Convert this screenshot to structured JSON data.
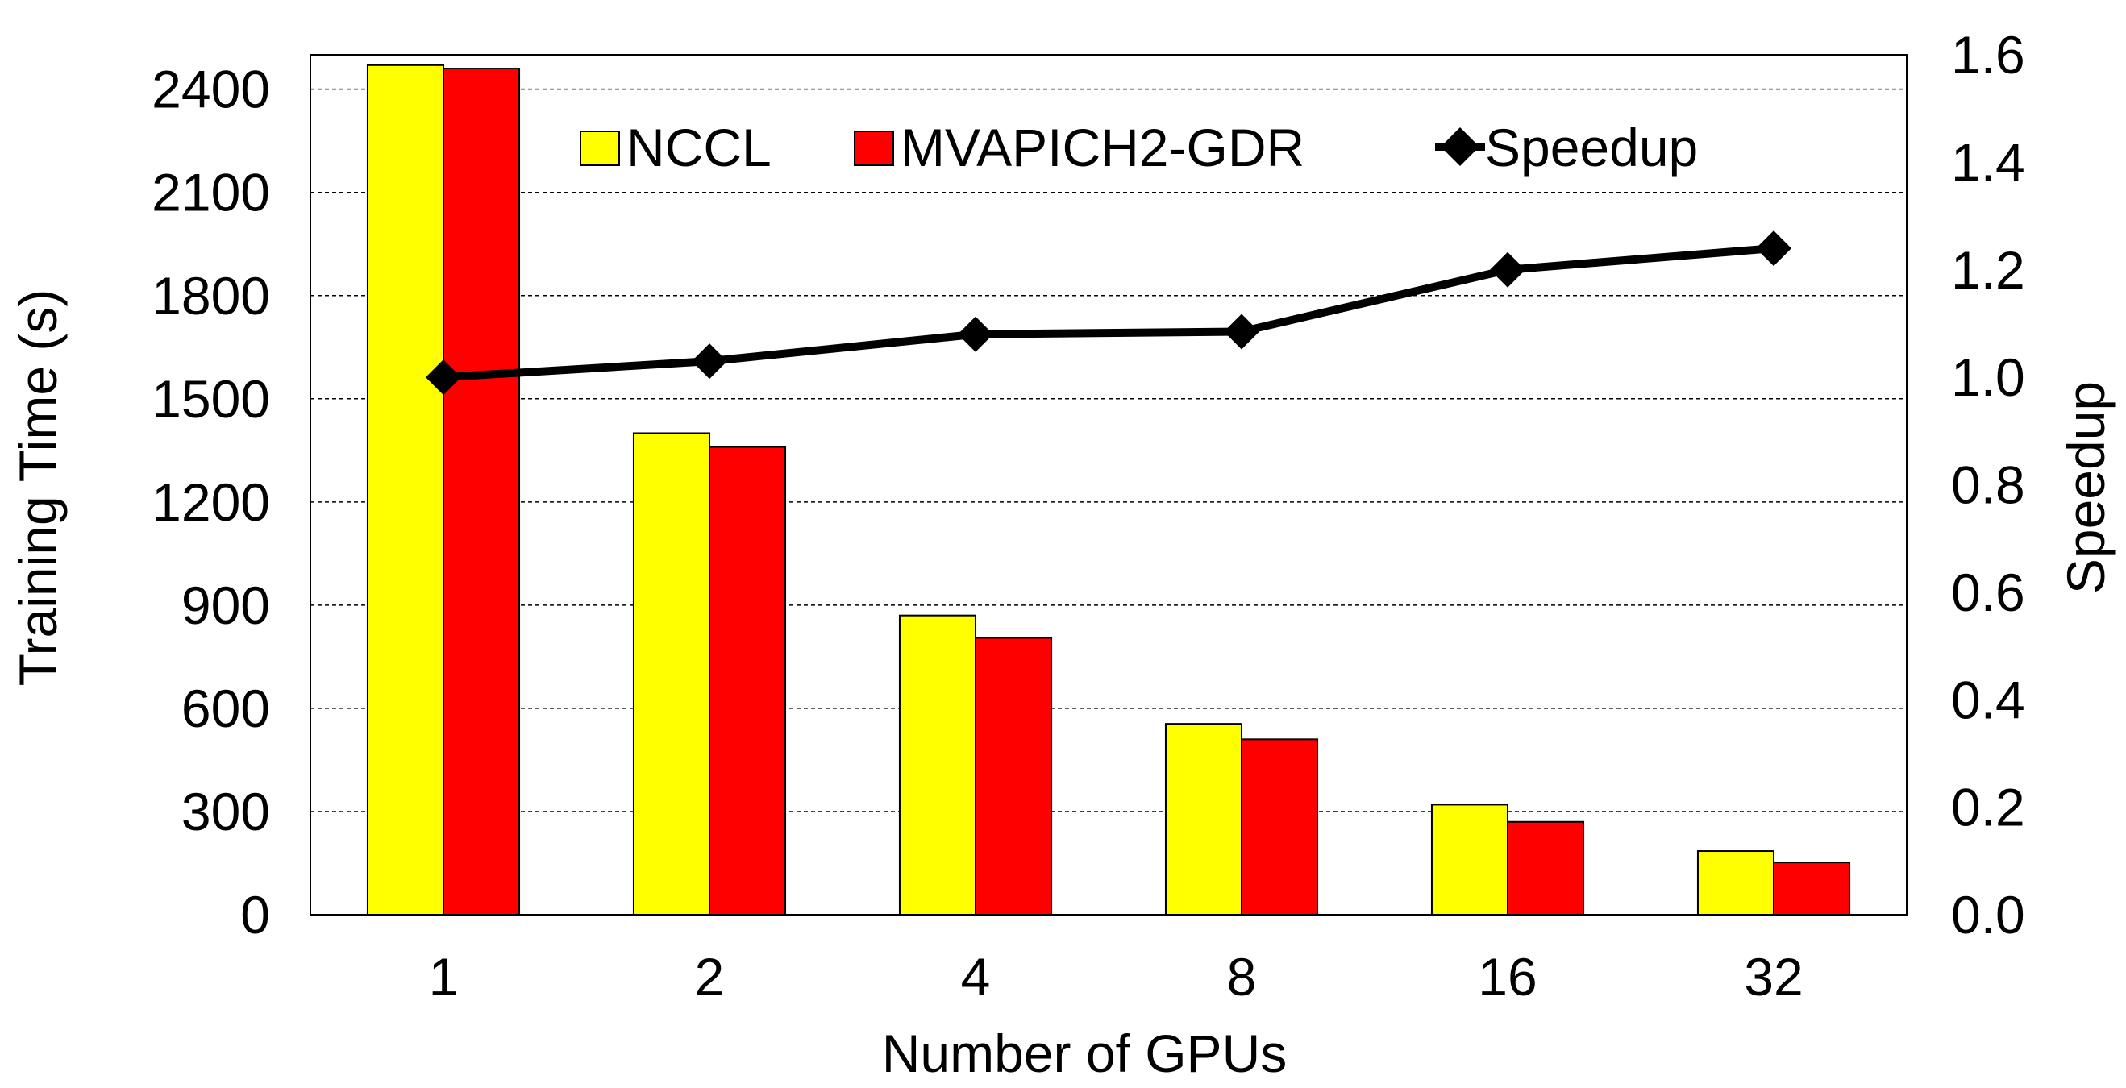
{
  "chart_data": {
    "type": "bar",
    "categories": [
      "1",
      "2",
      "4",
      "8",
      "16",
      "32"
    ],
    "series": [
      {
        "name": "NCCL",
        "axis": "left",
        "kind": "bar",
        "color": "#FFFF00",
        "values": [
          2470,
          1400,
          870,
          555,
          320,
          185
        ]
      },
      {
        "name": "MVAPICH2-GDR",
        "axis": "left",
        "kind": "bar",
        "color": "#FF0000",
        "values": [
          2460,
          1360,
          805,
          510,
          270,
          152
        ]
      },
      {
        "name": "Speedup",
        "axis": "right",
        "kind": "line",
        "color": "#000000",
        "values": [
          1.0,
          1.03,
          1.08,
          1.085,
          1.2,
          1.24
        ]
      }
    ],
    "xlabel": "Number of GPUs",
    "ylabel": "Training Time (s)",
    "y2label": "Speedup",
    "ylim": [
      0,
      2500
    ],
    "y2lim": [
      0,
      1.6
    ],
    "yticks": [
      "0",
      "300",
      "600",
      "900",
      "1200",
      "1500",
      "1800",
      "2100",
      "2400"
    ],
    "yticks_values": [
      0,
      300,
      600,
      900,
      1200,
      1500,
      1800,
      2100,
      2400
    ],
    "y2ticks": [
      "0.0",
      "0.2",
      "0.4",
      "0.6",
      "0.8",
      "1.0",
      "1.2",
      "1.4",
      "1.6"
    ],
    "y2ticks_values": [
      0,
      0.2,
      0.4,
      0.6,
      0.8,
      1.0,
      1.2,
      1.4,
      1.6
    ],
    "grid": true,
    "legend": {
      "position": "top",
      "entries": [
        "NCCL",
        "MVAPICH2-GDR",
        "Speedup"
      ]
    }
  }
}
